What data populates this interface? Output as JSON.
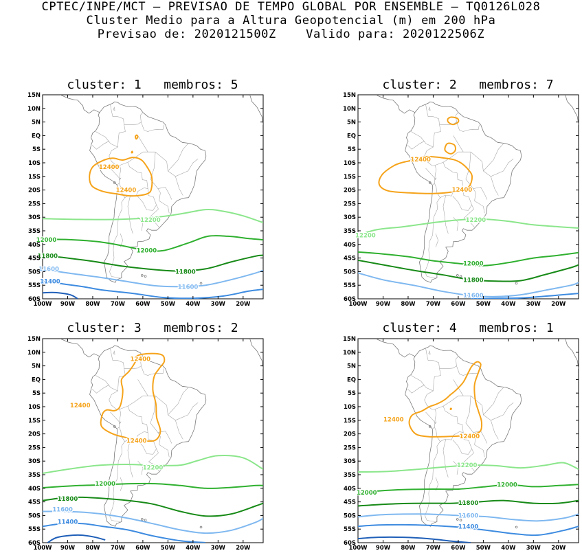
{
  "header": {
    "line1": "CPTEC/INPE/MCT – PREVISAO DE TEMPO GLOBAL POR ENSEMBLE – TQ0126L028",
    "line2": "Cluster Medio para a Altura Geopotencial (m) em 200 hPa",
    "line3": "Previsao de: 2020121500Z    Valido para: 2020122506Z"
  },
  "axes": {
    "lat_labels": [
      "15N",
      "10N",
      "5N",
      "EQ",
      "5S",
      "10S",
      "15S",
      "20S",
      "25S",
      "30S",
      "35S",
      "40S",
      "45S",
      "50S",
      "55S",
      "60S"
    ],
    "lon_labels": [
      "100W",
      "90W",
      "80W",
      "70W",
      "60W",
      "50W",
      "40W",
      "30W",
      "20W"
    ]
  },
  "colors": {
    "c12400": "#f5a31a",
    "c12200": "#8be68b",
    "c12000": "#2fb02f",
    "c11800": "#178a17",
    "c11600": "#7fb8f0",
    "c11400": "#3d8be0",
    "c11200": "#1f5fb8"
  },
  "panels": [
    {
      "title": "cluster: 1   membros: 5",
      "labels": [
        "12400",
        "12400",
        "12200",
        "12000",
        "12000",
        "11800",
        "11800",
        "11600",
        "11600",
        "11400"
      ]
    },
    {
      "title": "cluster: 2   membros: 7",
      "labels": [
        "12400",
        "12400",
        "12200",
        "12200",
        "12000",
        "11800",
        "11600"
      ]
    },
    {
      "title": "cluster: 3   membros: 2",
      "labels": [
        "12400",
        "12400",
        "12400",
        "12200",
        "12000",
        "11800",
        "11600",
        "11400"
      ]
    },
    {
      "title": "cluster: 4   membros: 1",
      "labels": [
        "12400",
        "12400",
        "12200",
        "12000",
        "12000",
        "11800",
        "11600",
        "11400"
      ]
    }
  ]
}
